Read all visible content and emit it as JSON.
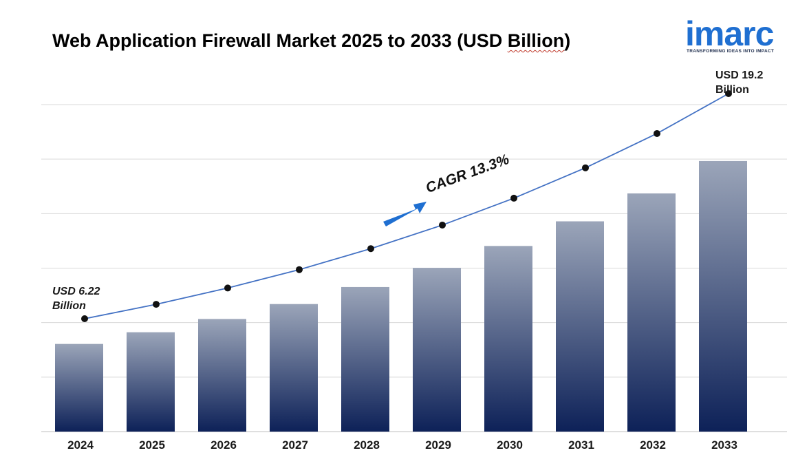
{
  "title": {
    "main": "Web Application Firewall Market 2025 to 2033 (USD ",
    "billion": "Billion",
    "close": ")"
  },
  "logo": {
    "word": "imarc",
    "tagline": "TRANSFORMING IDEAS INTO IMPACT",
    "color": "#1f6fd1"
  },
  "annotations": {
    "start_line1": "USD 6.22",
    "start_line2": "Billion",
    "end_line1": "USD 19.2",
    "end_line2": "Billion",
    "cagr": "CAGR  13.3%"
  },
  "chart_data": {
    "type": "bar",
    "categories": [
      "2024",
      "2025",
      "2026",
      "2027",
      "2028",
      "2029",
      "2030",
      "2031",
      "2032",
      "2033"
    ],
    "series": [
      {
        "values": [
          6.22,
          7.05,
          7.99,
          9.05,
          10.26,
          11.62,
          13.17,
          14.92,
          16.9,
          19.2
        ]
      }
    ],
    "trend_line_values": [
      6.22,
      7.05,
      7.99,
      9.05,
      10.26,
      11.62,
      13.17,
      14.92,
      16.9,
      19.2
    ],
    "ylim": [
      0,
      23.2
    ],
    "grid": true,
    "bar_color_top": "#9ba5b9",
    "bar_color_bottom": "#0d2158",
    "line_color": "#4472c4",
    "arrow_color": "#1f6fd1"
  }
}
